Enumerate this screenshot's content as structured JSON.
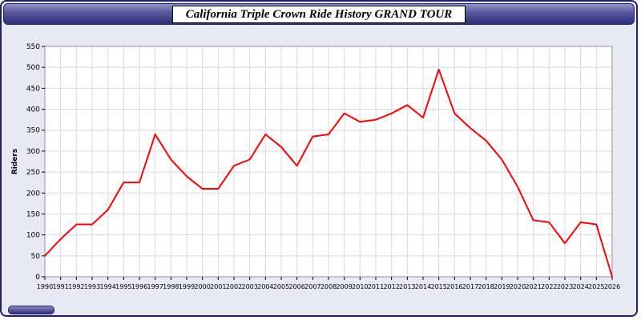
{
  "window": {
    "title": "California Triple Crown Ride History GRAND TOUR"
  },
  "colors": {
    "line": "#ff0000",
    "window_background": "#e9e9f6",
    "titlebar_top": "#9393c8",
    "titlebar_bottom": "#2e2e7c",
    "grid": "#d9d9de",
    "plot_background": "#ffffff"
  },
  "chart_data": {
    "type": "line",
    "title": "California Triple Crown Ride History GRAND TOUR",
    "xlabel": "",
    "ylabel": "Riders",
    "x": [
      1990,
      1991,
      1992,
      1993,
      1994,
      1995,
      1996,
      1997,
      1998,
      1999,
      2000,
      2001,
      2002,
      2003,
      2004,
      2005,
      2006,
      2007,
      2008,
      2009,
      2010,
      2011,
      2012,
      2013,
      2014,
      2015,
      2016,
      2017,
      2018,
      2019,
      2020,
      2021,
      2022,
      2023,
      2024,
      2025,
      2026
    ],
    "values": [
      50,
      90,
      125,
      125,
      160,
      225,
      225,
      340,
      280,
      240,
      210,
      210,
      265,
      280,
      340,
      310,
      265,
      335,
      340,
      390,
      370,
      375,
      390,
      410,
      380,
      495,
      390,
      355,
      325,
      280,
      215,
      135,
      130,
      80,
      130,
      125,
      0
    ],
    "ylim": [
      0,
      550
    ],
    "ytick_step": 50,
    "grid": true,
    "legend_position": "none",
    "line_color": "#ff0000"
  }
}
